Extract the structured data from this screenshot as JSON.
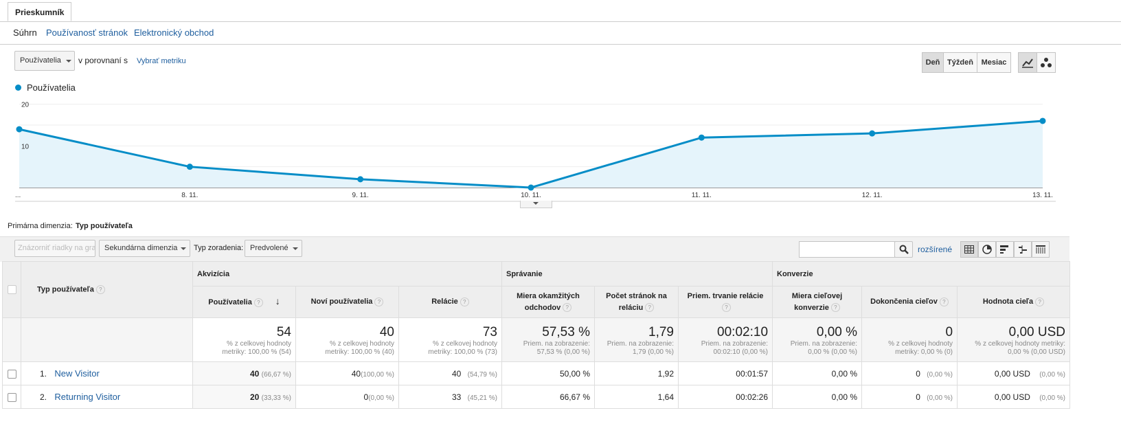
{
  "tabs": {
    "active": "Prieskumník"
  },
  "subnav": {
    "summary": "Súhrn",
    "usage": "Používanosť stránok",
    "ecommerce": "Elektronický obchod"
  },
  "metric_select": {
    "value": "Používatelia",
    "compare": "v porovnaní s",
    "choose": "Vybrať metriku"
  },
  "period": {
    "day": "Deň",
    "week": "Týždeň",
    "month": "Mesiac"
  },
  "legend": {
    "series": "Používatelia",
    "color": "#058dc7"
  },
  "chart_data": {
    "type": "area",
    "x": [
      "...",
      "8. 11.",
      "9. 11.",
      "10. 11.",
      "11. 11.",
      "12. 11.",
      "13. 11."
    ],
    "series": [
      {
        "name": "Používatelia",
        "values": [
          14,
          5,
          2,
          0,
          12,
          13,
          16
        ]
      }
    ],
    "yticks": [
      "20",
      "10"
    ],
    "ylim": [
      0,
      20
    ]
  },
  "dimension": {
    "label": "Primárna dimenzia:",
    "value": "Typ používateľa"
  },
  "toolbar": {
    "plot_rows": "Znázorniť riadky na grafe",
    "secondary": "Sekundárna dimenzia",
    "sort_label": "Typ zoradenia:",
    "sort_value": "Predvolené",
    "advanced": "rozšírené",
    "search_placeholder": ""
  },
  "table": {
    "dim_header": "Typ používateľa",
    "groups": {
      "acq": "Akvizícia",
      "beh": "Správanie",
      "conv": "Konverzie"
    },
    "columns": [
      "Používatelia",
      "Noví používatelia",
      "Relácie",
      "Miera okamžitých odchodov",
      "Počet stránok na reláciu",
      "Priem. trvanie relácie",
      "Miera cieľovej konverzie",
      "Dokončenia cieľov",
      "Hodnota cieľa"
    ],
    "totals": [
      {
        "big": "54",
        "s1": "% z celkovej hodnoty",
        "s2": "metriky: 100,00 % (54)"
      },
      {
        "big": "40",
        "s1": "% z celkovej hodnoty",
        "s2": "metriky: 100,00 % (40)"
      },
      {
        "big": "73",
        "s1": "% z celkovej hodnoty",
        "s2": "metriky: 100,00 % (73)"
      },
      {
        "big": "57,53 %",
        "s1": "Priem. na zobrazenie:",
        "s2": "57,53 % (0,00 %)"
      },
      {
        "big": "1,79",
        "s1": "Priem. na zobrazenie:",
        "s2": "1,79 (0,00 %)"
      },
      {
        "big": "00:02:10",
        "s1": "Priem. na zobrazenie:",
        "s2": "00:02:10 (0,00 %)"
      },
      {
        "big": "0,00 %",
        "s1": "Priem. na zobrazenie:",
        "s2": "0,00 % (0,00 %)"
      },
      {
        "big": "0",
        "s1": "% z celkovej hodnoty",
        "s2": "metriky: 0,00 % (0)"
      },
      {
        "big": "0,00 USD",
        "s1": "% z celkovej hodnoty metriky:",
        "s2": "0,00 % (0,00 USD)"
      }
    ],
    "rows": [
      {
        "idx": "1.",
        "name": "New Visitor",
        "users": "40",
        "users_pct": "(66,67 %)",
        "new": "40",
        "new_pct": "(100,00 %)",
        "sess": "40",
        "sess_pct": "(54,79 %)",
        "bounce": "50,00 %",
        "pages": "1,92",
        "dur": "00:01:57",
        "conv": "0,00 %",
        "goals": "0",
        "goals_pct": "(0,00 %)",
        "value": "0,00 USD",
        "value_pct": "(0,00 %)"
      },
      {
        "idx": "2.",
        "name": "Returning Visitor",
        "users": "20",
        "users_pct": "(33,33 %)",
        "new": "0",
        "new_pct": "(0,00 %)",
        "sess": "33",
        "sess_pct": "(45,21 %)",
        "bounce": "66,67 %",
        "pages": "1,64",
        "dur": "00:02:26",
        "conv": "0,00 %",
        "goals": "0",
        "goals_pct": "(0,00 %)",
        "value": "0,00 USD",
        "value_pct": "(0,00 %)"
      }
    ]
  }
}
